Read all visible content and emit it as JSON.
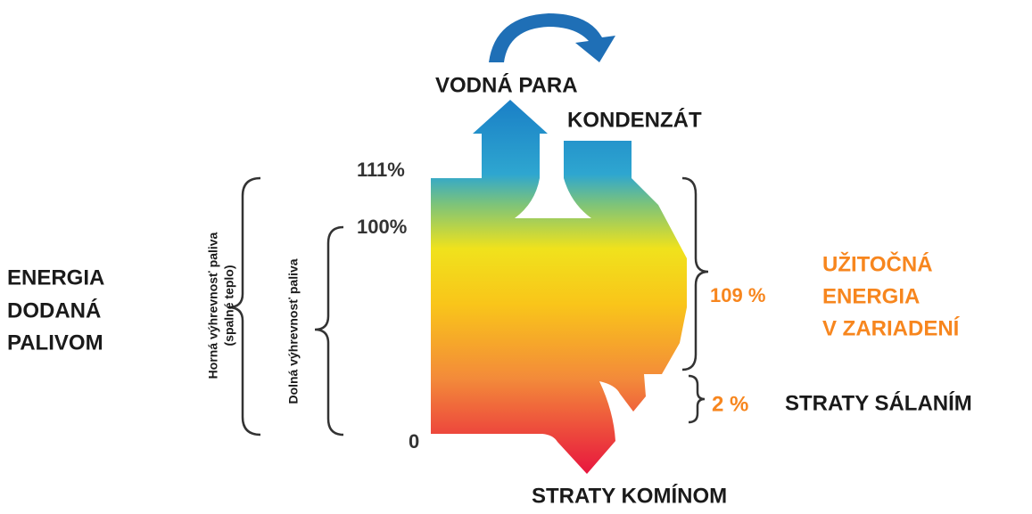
{
  "vapor": "VODNÁ PARA",
  "condensate": "KONDENZÁT",
  "levels": [
    "111%",
    "100%",
    "0"
  ],
  "input_energy": [
    "ENERGIA",
    "DODANÁ",
    "PALIVOM"
  ],
  "higher_heating_value": [
    "Horná výhrevnosť paliva",
    "(spalné teplo)"
  ],
  "lower_heating_value": "Dolná výhrevnosť paliva",
  "useful": {
    "percent": "109 %",
    "lines": [
      "UŽITOČNÁ",
      "ENERGIA",
      "V ZARIADENÍ"
    ]
  },
  "radiation_loss": {
    "percent": "2 %",
    "label": "STRATY SÁLANÍM"
  },
  "chimney_loss": "STRATY KOMÍNOM"
}
